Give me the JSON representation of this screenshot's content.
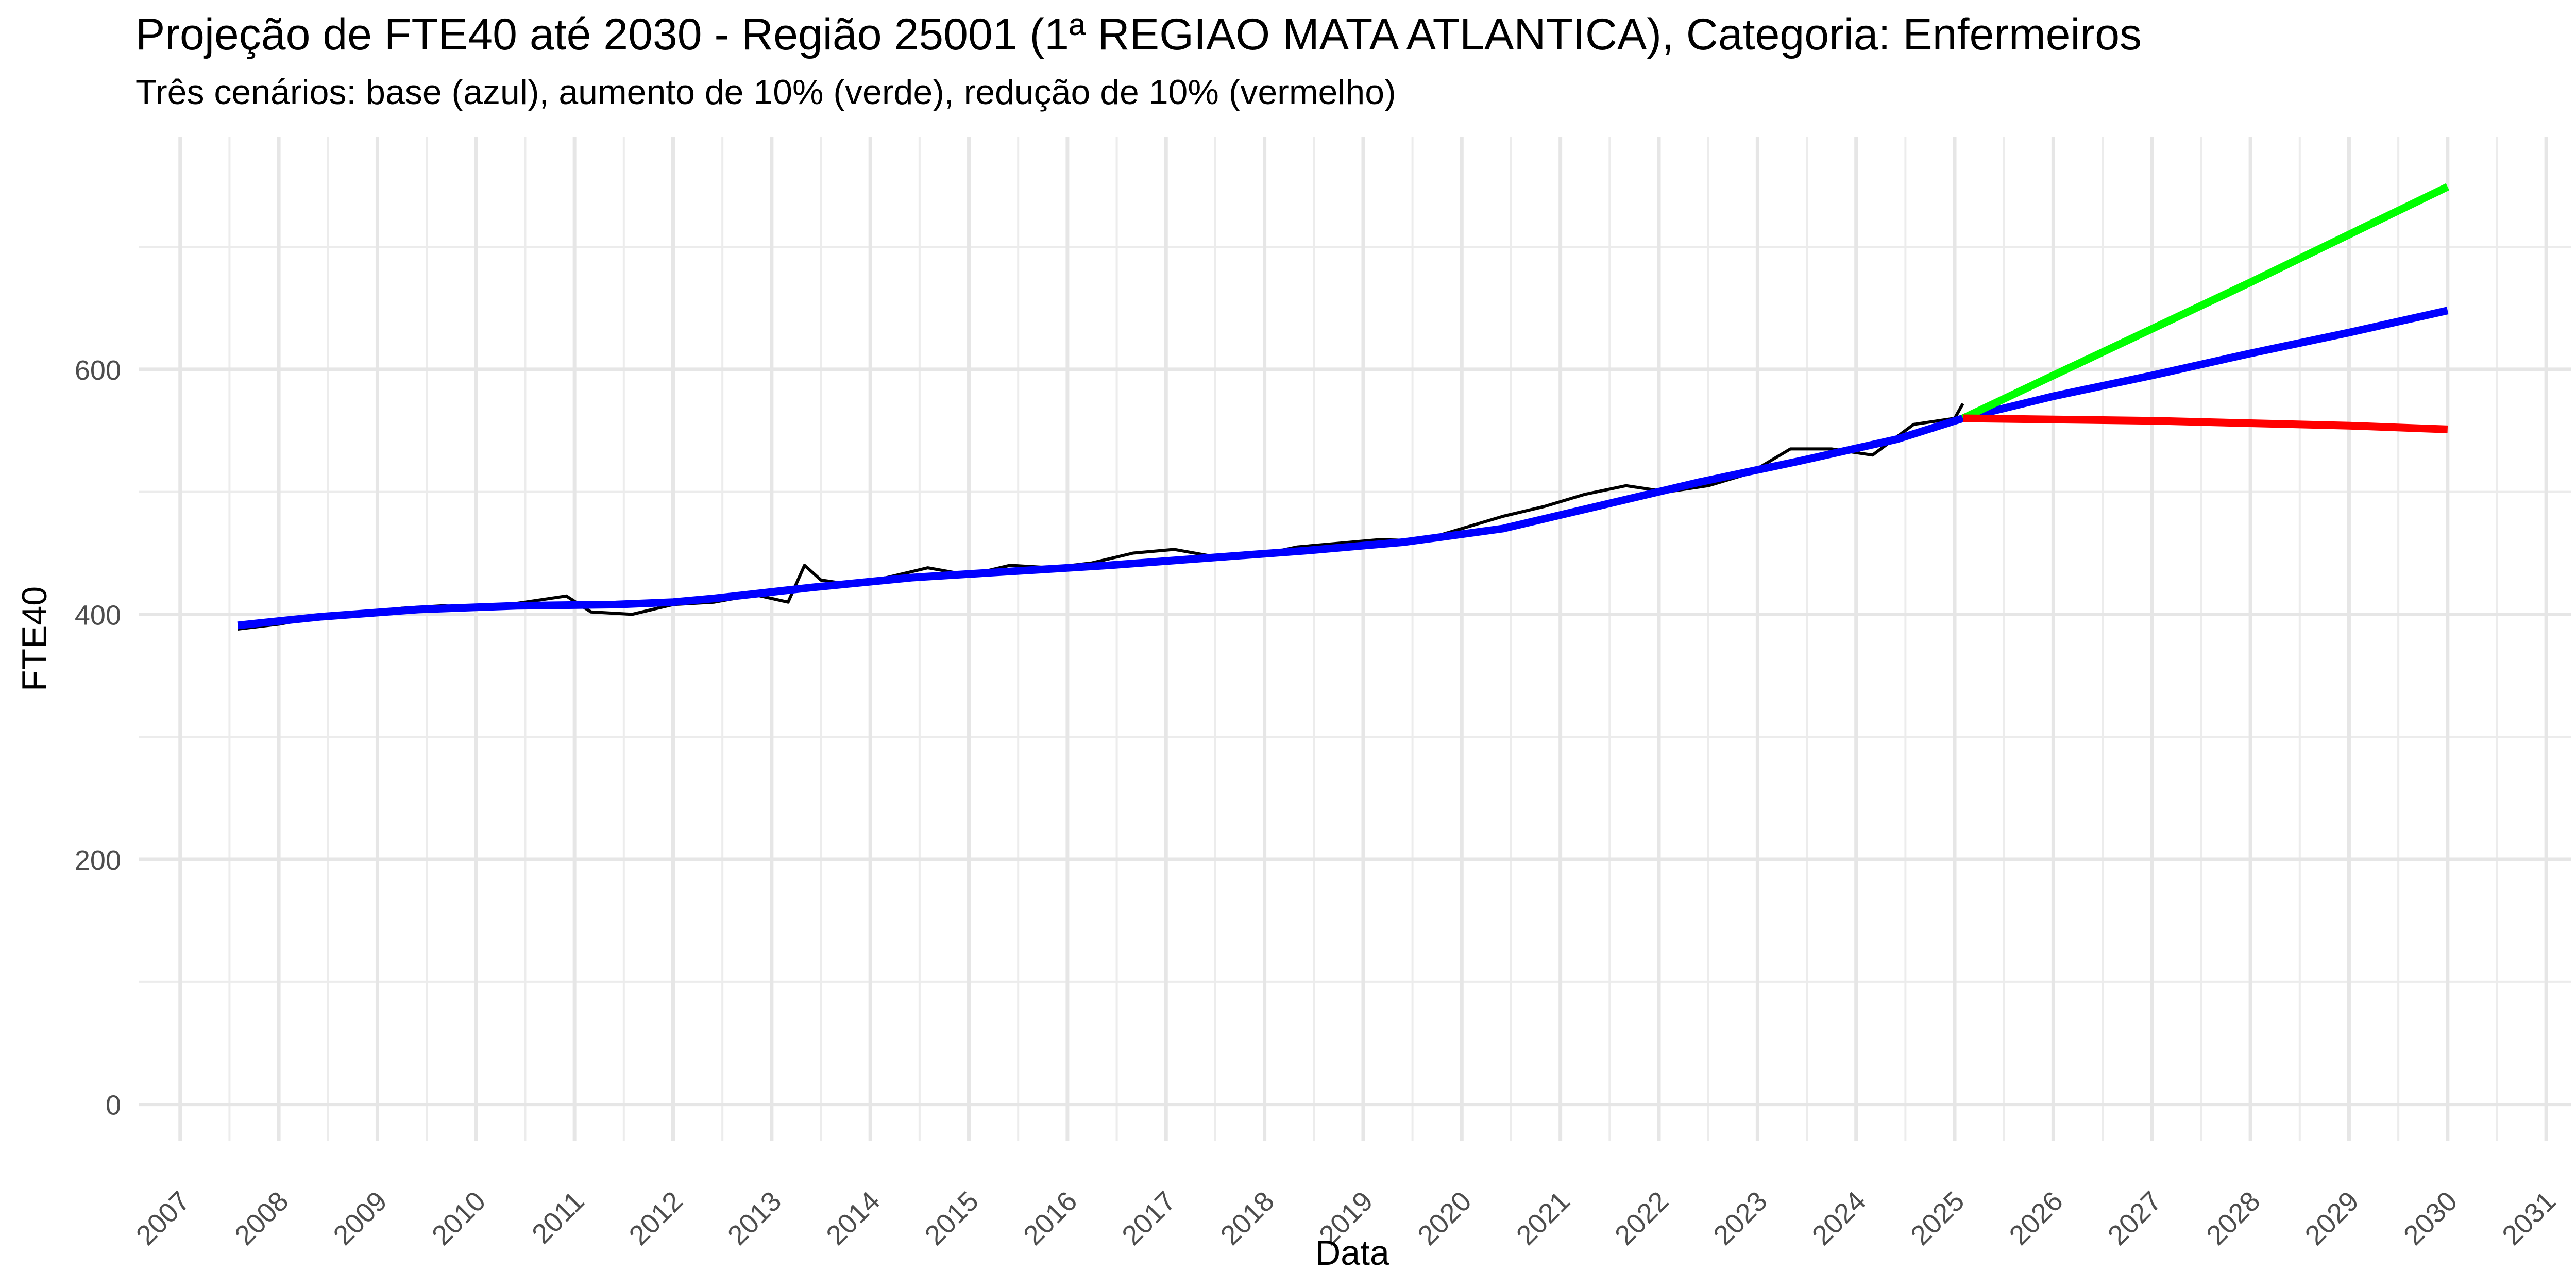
{
  "title": "Projeção de FTE40 até 2030 - Região 25001 (1ª REGIAO MATA ATLANTICA), Categoria: Enfermeiros",
  "subtitle": "Três cenários: base (azul), aumento de 10% (verde), redução de 10% (vermelho)",
  "chart_data": {
    "type": "line",
    "title": "Projeção de FTE40 até 2030 - Região 25001 (1ª REGIAO MATA ATLANTICA), Categoria: Enfermeiros",
    "subtitle": "Três cenários: base (azul), aumento de 10% (verde), redução de 10% (vermelho)",
    "xlabel": "Data",
    "ylabel": "FTE40",
    "x_type": "date",
    "xlim": [
      "2006-08-01",
      "2031-04-01"
    ],
    "ylim": [
      -30,
      790
    ],
    "x_ticks": [
      "2007",
      "2008",
      "2009",
      "2010",
      "2011",
      "2012",
      "2013",
      "2014",
      "2015",
      "2016",
      "2017",
      "2018",
      "2019",
      "2020",
      "2021",
      "2022",
      "2023",
      "2024",
      "2025",
      "2026",
      "2027",
      "2028",
      "2029",
      "2030",
      "2031"
    ],
    "y_ticks": [
      0,
      200,
      400,
      600
    ],
    "grid": true,
    "legend": "none",
    "series": [
      {
        "color": "#000000",
        "x": [
          "2007-08",
          "2008-01",
          "2008-06",
          "2008-11",
          "2009-04",
          "2009-09",
          "2010-02",
          "2010-07",
          "2010-12",
          "2011-03",
          "2011-08",
          "2012-01",
          "2012-06",
          "2012-11",
          "2013-03",
          "2013-05",
          "2013-07",
          "2013-10",
          "2014-03",
          "2014-08",
          "2015-01",
          "2015-06",
          "2015-11",
          "2016-04",
          "2016-09",
          "2017-02",
          "2017-07",
          "2017-12",
          "2018-05",
          "2018-10",
          "2019-03",
          "2019-08",
          "2020-01",
          "2020-06",
          "2020-11",
          "2021-04",
          "2021-09",
          "2022-02",
          "2022-07",
          "2022-12",
          "2023-05",
          "2023-10",
          "2024-03",
          "2024-08",
          "2025-01",
          "2025-02"
        ],
        "y": [
          388,
          392,
          398,
          400,
          405,
          407,
          405,
          410,
          415,
          402,
          400,
          408,
          410,
          416,
          410,
          440,
          428,
          425,
          430,
          438,
          432,
          440,
          438,
          442,
          450,
          453,
          447,
          448,
          455,
          458,
          461,
          460,
          470,
          480,
          488,
          498,
          505,
          500,
          505,
          515,
          535,
          535,
          530,
          555,
          560,
          572
        ]
      },
      {
        "color": "#0000ff",
        "x": [
          "2007-08",
          "2008-06",
          "2009-06",
          "2010-06",
          "2011-06",
          "2012-01",
          "2012-06",
          "2013-06",
          "2014-06",
          "2015-06",
          "2016-06",
          "2017-06",
          "2018-06",
          "2019-06",
          "2020-06",
          "2021-06",
          "2022-06",
          "2023-06",
          "2024-06",
          "2025-02",
          "2026-01",
          "2027-01",
          "2028-01",
          "2029-01",
          "2030-01"
        ],
        "y": [
          391,
          398,
          404,
          407,
          408,
          410,
          413,
          422,
          430,
          435,
          440,
          446,
          452,
          459,
          470,
          489,
          508,
          525,
          543,
          560,
          578,
          595,
          613,
          630,
          648
        ]
      },
      {
        "color": "#00ff00",
        "x": [
          "2025-02",
          "2026-01",
          "2027-01",
          "2028-01",
          "2029-01",
          "2030-01"
        ],
        "y": [
          560,
          595,
          633,
          671,
          710,
          749
        ]
      },
      {
        "color": "#ff0000",
        "x": [
          "2025-02",
          "2026-01",
          "2027-01",
          "2028-01",
          "2029-01",
          "2030-01"
        ],
        "y": [
          560,
          559,
          558,
          556,
          554,
          551
        ]
      }
    ]
  }
}
